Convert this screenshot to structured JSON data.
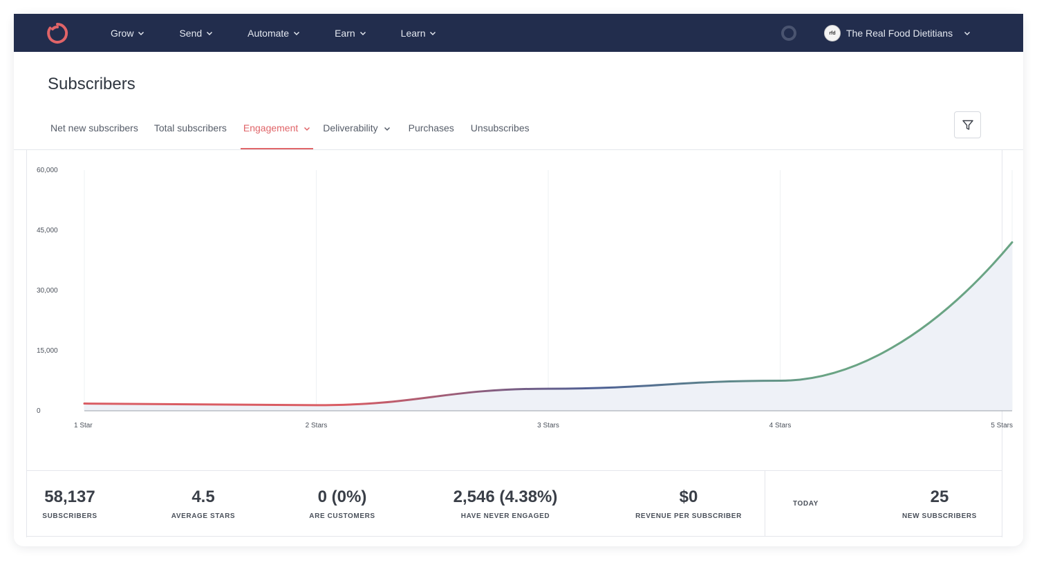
{
  "nav": {
    "items": [
      {
        "label": "Grow"
      },
      {
        "label": "Send"
      },
      {
        "label": "Automate"
      },
      {
        "label": "Earn"
      },
      {
        "label": "Learn"
      }
    ],
    "account_name": "The Real Food Dietitians",
    "account_avatar_text": "rfd",
    "colors": {
      "background": "#222d4d",
      "logo": "#e06468"
    }
  },
  "page": {
    "title": "Subscribers",
    "tabs": [
      {
        "label": "Net new subscribers",
        "active": false,
        "dropdown": false
      },
      {
        "label": "Total subscribers",
        "active": false,
        "dropdown": false
      },
      {
        "label": "Engagement",
        "active": true,
        "dropdown": true
      },
      {
        "label": "Deliverability",
        "active": false,
        "dropdown": true
      },
      {
        "label": "Purchases",
        "active": false,
        "dropdown": false
      },
      {
        "label": "Unsubscribes",
        "active": false,
        "dropdown": false
      }
    ],
    "filter_icon": "filter-icon"
  },
  "chart_data": {
    "type": "area",
    "categories": [
      "1 Star",
      "2 Stars",
      "3 Stars",
      "4 Stars",
      "5 Stars"
    ],
    "values": [
      1800,
      1400,
      5500,
      7500,
      42000
    ],
    "yticks": [
      "60,000",
      "45,000",
      "30,000",
      "15,000",
      "0"
    ],
    "ylim": [
      0,
      60000
    ],
    "grid": "vertical",
    "colors": {
      "start": "#d95c63",
      "mid": "#4d5f94",
      "end": "#6aa484",
      "fill": "#eef1f7"
    }
  },
  "stats": [
    {
      "value": "58,137",
      "label": "SUBSCRIBERS"
    },
    {
      "value": "4.5",
      "label": "AVERAGE STARS"
    },
    {
      "value": "0 (0%)",
      "label": "ARE CUSTOMERS"
    },
    {
      "value": "2,546 (4.38%)",
      "label": "HAVE NEVER ENGAGED"
    },
    {
      "value": "$0",
      "label": "REVENUE PER SUBSCRIBER"
    }
  ],
  "today": {
    "label": "TODAY",
    "value": "25",
    "value_label": "NEW SUBSCRIBERS"
  }
}
